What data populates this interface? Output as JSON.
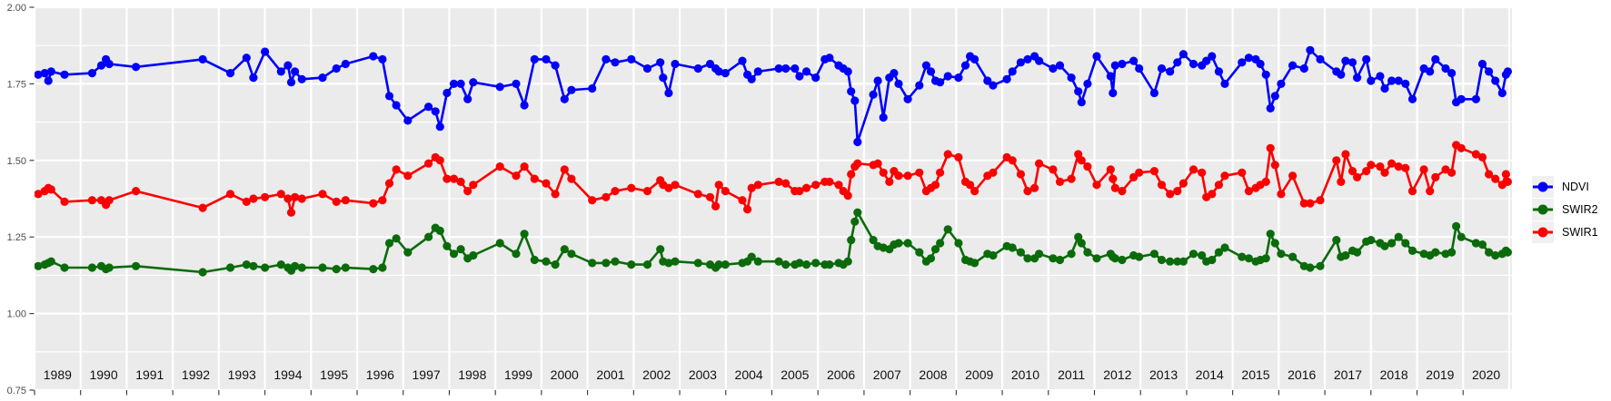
{
  "colors": {
    "panel_background": "#EBEBEB",
    "grid": "#FFFFFF",
    "axis_text": "#4D4D4D",
    "year_text": "#111111",
    "tick": "#333333",
    "legend_key_background": "#F0F0F0"
  },
  "legend": {
    "position": "right",
    "items": [
      {
        "label": "NDVI",
        "color": "#0000FA"
      },
      {
        "label": "SWIR2",
        "color": "#0B6B0B"
      },
      {
        "label": "SWIR1",
        "color": "#FB0000"
      }
    ]
  },
  "chart_data": {
    "type": "line",
    "title": "",
    "xlabel": "",
    "ylabel": "",
    "grid": true,
    "legend_position": "right",
    "ylim": [
      0.75,
      2.0
    ],
    "xlim": [
      1989,
      2021
    ],
    "y_ticks": {
      "labels": [
        "2.00",
        "1.75",
        "1.50",
        "1.25",
        "1.00",
        "0.75"
      ],
      "values": [
        2.0,
        1.75,
        1.5,
        1.25,
        1.0,
        0.75
      ]
    },
    "x_tick_years": [
      1989,
      1990,
      1991,
      1992,
      1993,
      1994,
      1995,
      1996,
      1997,
      1998,
      1999,
      2000,
      2001,
      2002,
      2003,
      2004,
      2005,
      2006,
      2007,
      2008,
      2009,
      2010,
      2011,
      2012,
      2013,
      2014,
      2015,
      2016,
      2017,
      2018,
      2019,
      2020
    ],
    "x": [
      1989.08,
      1989.22,
      1989.3,
      1989.36,
      1989.65,
      1990.25,
      1990.45,
      1990.55,
      1990.62,
      1991.2,
      1992.65,
      1993.25,
      1993.6,
      1993.75,
      1994.0,
      1994.35,
      1994.5,
      1994.57,
      1994.65,
      1994.8,
      1995.25,
      1995.55,
      1995.75,
      1996.35,
      1996.55,
      1996.7,
      1996.85,
      1997.1,
      1997.55,
      1997.7,
      1997.8,
      1997.95,
      1998.1,
      1998.25,
      1998.4,
      1998.52,
      1999.1,
      1999.45,
      1999.63,
      1999.85,
      2000.1,
      2000.3,
      2000.5,
      2000.65,
      2001.1,
      2001.4,
      2001.6,
      2001.95,
      2002.3,
      2002.58,
      2002.64,
      2002.76,
      2002.9,
      2003.4,
      2003.66,
      2003.78,
      2003.85,
      2003.99,
      2004.36,
      2004.47,
      2004.56,
      2004.7,
      2005.15,
      2005.3,
      2005.5,
      2005.6,
      2005.75,
      2005.95,
      2006.15,
      2006.25,
      2006.45,
      2006.55,
      2006.65,
      2006.72,
      2006.8,
      2006.86,
      2007.2,
      2007.3,
      2007.42,
      2007.55,
      2007.65,
      2007.75,
      2007.95,
      2008.2,
      2008.35,
      2008.45,
      2008.55,
      2008.65,
      2008.82,
      2009.05,
      2009.2,
      2009.3,
      2009.4,
      2009.68,
      2009.8,
      2010.1,
      2010.22,
      2010.4,
      2010.55,
      2010.7,
      2010.8,
      2011.1,
      2011.25,
      2011.5,
      2011.65,
      2011.72,
      2011.85,
      2012.05,
      2012.35,
      2012.4,
      2012.45,
      2012.6,
      2012.85,
      2012.97,
      2013.3,
      2013.46,
      2013.64,
      2013.8,
      2013.93,
      2014.15,
      2014.33,
      2014.43,
      2014.55,
      2014.7,
      2014.83,
      2015.2,
      2015.35,
      2015.5,
      2015.6,
      2015.72,
      2015.82,
      2015.92,
      2016.05,
      2016.3,
      2016.55,
      2016.68,
      2016.9,
      2017.25,
      2017.35,
      2017.45,
      2017.6,
      2017.7,
      2017.9,
      2018.0,
      2018.2,
      2018.3,
      2018.45,
      2018.6,
      2018.75,
      2018.9,
      2019.15,
      2019.28,
      2019.4,
      2019.62,
      2019.75,
      2019.85,
      2019.96,
      2020.28,
      2020.42,
      2020.56,
      2020.7,
      2020.85,
      2020.93,
      2020.97
    ],
    "series": [
      {
        "name": "NDVI",
        "color": "#0000FA",
        "values": [
          1.78,
          1.785,
          1.76,
          1.79,
          1.78,
          1.785,
          1.81,
          1.83,
          1.815,
          1.805,
          1.83,
          1.785,
          1.835,
          1.77,
          1.855,
          1.79,
          1.81,
          1.755,
          1.79,
          1.765,
          1.77,
          1.8,
          1.815,
          1.84,
          1.83,
          1.71,
          1.68,
          1.63,
          1.675,
          1.66,
          1.61,
          1.72,
          1.75,
          1.75,
          1.7,
          1.755,
          1.74,
          1.75,
          1.68,
          1.83,
          1.83,
          1.81,
          1.7,
          1.73,
          1.735,
          1.83,
          1.82,
          1.83,
          1.8,
          1.82,
          1.77,
          1.72,
          1.815,
          1.8,
          1.815,
          1.8,
          1.79,
          1.785,
          1.825,
          1.78,
          1.765,
          1.79,
          1.8,
          1.8,
          1.8,
          1.775,
          1.79,
          1.77,
          1.83,
          1.835,
          1.81,
          1.8,
          1.79,
          1.725,
          1.695,
          1.56,
          1.715,
          1.76,
          1.64,
          1.77,
          1.785,
          1.75,
          1.7,
          1.745,
          1.81,
          1.79,
          1.76,
          1.755,
          1.775,
          1.77,
          1.81,
          1.84,
          1.83,
          1.76,
          1.745,
          1.765,
          1.79,
          1.82,
          1.83,
          1.84,
          1.825,
          1.8,
          1.81,
          1.77,
          1.725,
          1.69,
          1.75,
          1.84,
          1.775,
          1.72,
          1.81,
          1.815,
          1.825,
          1.8,
          1.72,
          1.8,
          1.79,
          1.82,
          1.847,
          1.815,
          1.81,
          1.825,
          1.84,
          1.79,
          1.75,
          1.82,
          1.835,
          1.83,
          1.815,
          1.78,
          1.67,
          1.71,
          1.75,
          1.81,
          1.8,
          1.86,
          1.83,
          1.79,
          1.78,
          1.825,
          1.82,
          1.77,
          1.83,
          1.76,
          1.775,
          1.735,
          1.76,
          1.76,
          1.75,
          1.7,
          1.8,
          1.79,
          1.83,
          1.8,
          1.785,
          1.69,
          1.7,
          1.7,
          1.815,
          1.79,
          1.76,
          1.72,
          1.78,
          1.79
        ]
      },
      {
        "name": "SWIR2",
        "color": "#0B6B0B",
        "values": [
          1.155,
          1.16,
          1.165,
          1.17,
          1.15,
          1.15,
          1.155,
          1.145,
          1.15,
          1.155,
          1.135,
          1.15,
          1.16,
          1.155,
          1.15,
          1.16,
          1.15,
          1.14,
          1.155,
          1.15,
          1.15,
          1.145,
          1.15,
          1.145,
          1.15,
          1.23,
          1.245,
          1.2,
          1.25,
          1.28,
          1.27,
          1.22,
          1.195,
          1.21,
          1.18,
          1.19,
          1.23,
          1.195,
          1.26,
          1.175,
          1.17,
          1.16,
          1.21,
          1.195,
          1.165,
          1.165,
          1.17,
          1.16,
          1.16,
          1.21,
          1.17,
          1.165,
          1.17,
          1.165,
          1.16,
          1.15,
          1.16,
          1.16,
          1.165,
          1.17,
          1.185,
          1.17,
          1.17,
          1.16,
          1.16,
          1.165,
          1.16,
          1.165,
          1.16,
          1.16,
          1.165,
          1.16,
          1.17,
          1.24,
          1.3,
          1.33,
          1.24,
          1.22,
          1.215,
          1.21,
          1.225,
          1.23,
          1.23,
          1.2,
          1.17,
          1.18,
          1.21,
          1.23,
          1.275,
          1.23,
          1.175,
          1.17,
          1.165,
          1.195,
          1.19,
          1.22,
          1.215,
          1.2,
          1.18,
          1.18,
          1.195,
          1.18,
          1.175,
          1.195,
          1.25,
          1.23,
          1.2,
          1.18,
          1.195,
          1.185,
          1.18,
          1.175,
          1.19,
          1.185,
          1.195,
          1.175,
          1.17,
          1.17,
          1.17,
          1.195,
          1.19,
          1.17,
          1.175,
          1.2,
          1.215,
          1.185,
          1.18,
          1.17,
          1.175,
          1.18,
          1.26,
          1.23,
          1.195,
          1.185,
          1.155,
          1.15,
          1.155,
          1.24,
          1.185,
          1.19,
          1.205,
          1.2,
          1.235,
          1.24,
          1.23,
          1.22,
          1.23,
          1.25,
          1.23,
          1.205,
          1.195,
          1.19,
          1.2,
          1.195,
          1.2,
          1.285,
          1.25,
          1.23,
          1.225,
          1.2,
          1.19,
          1.195,
          1.205,
          1.2
        ]
      },
      {
        "name": "SWIR1",
        "color": "#FB0000",
        "values": [
          1.39,
          1.4,
          1.41,
          1.405,
          1.365,
          1.37,
          1.37,
          1.355,
          1.37,
          1.4,
          1.345,
          1.39,
          1.365,
          1.375,
          1.38,
          1.39,
          1.375,
          1.33,
          1.38,
          1.375,
          1.39,
          1.365,
          1.37,
          1.36,
          1.37,
          1.425,
          1.47,
          1.45,
          1.49,
          1.51,
          1.5,
          1.44,
          1.44,
          1.43,
          1.4,
          1.42,
          1.48,
          1.45,
          1.48,
          1.44,
          1.425,
          1.39,
          1.47,
          1.44,
          1.37,
          1.38,
          1.4,
          1.41,
          1.4,
          1.435,
          1.42,
          1.41,
          1.42,
          1.39,
          1.38,
          1.35,
          1.42,
          1.4,
          1.37,
          1.34,
          1.41,
          1.42,
          1.43,
          1.425,
          1.4,
          1.4,
          1.41,
          1.42,
          1.43,
          1.43,
          1.42,
          1.4,
          1.385,
          1.455,
          1.48,
          1.49,
          1.485,
          1.49,
          1.46,
          1.43,
          1.465,
          1.45,
          1.45,
          1.46,
          1.4,
          1.41,
          1.42,
          1.46,
          1.52,
          1.51,
          1.43,
          1.42,
          1.4,
          1.45,
          1.46,
          1.51,
          1.5,
          1.455,
          1.4,
          1.41,
          1.49,
          1.47,
          1.43,
          1.44,
          1.52,
          1.5,
          1.48,
          1.42,
          1.47,
          1.44,
          1.41,
          1.4,
          1.445,
          1.46,
          1.465,
          1.42,
          1.39,
          1.4,
          1.425,
          1.47,
          1.46,
          1.38,
          1.39,
          1.42,
          1.45,
          1.46,
          1.4,
          1.41,
          1.42,
          1.43,
          1.54,
          1.485,
          1.39,
          1.45,
          1.36,
          1.36,
          1.37,
          1.5,
          1.43,
          1.52,
          1.465,
          1.445,
          1.465,
          1.485,
          1.48,
          1.46,
          1.49,
          1.48,
          1.475,
          1.4,
          1.47,
          1.4,
          1.445,
          1.47,
          1.46,
          1.55,
          1.54,
          1.52,
          1.51,
          1.455,
          1.44,
          1.42,
          1.455,
          1.43
        ]
      }
    ]
  }
}
